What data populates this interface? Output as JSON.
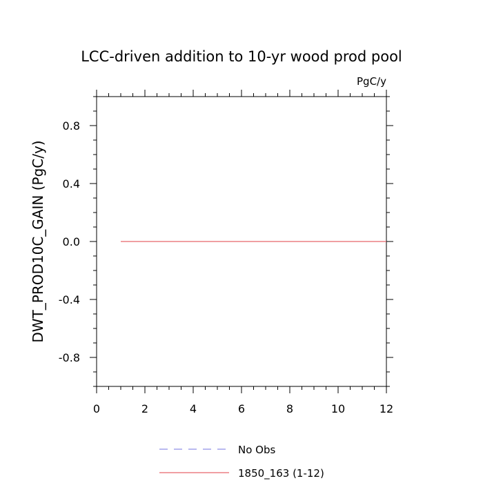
{
  "chart_data": {
    "type": "line",
    "title": "LCC-driven addition to 10-yr wood prod pool",
    "units_label": "PgC/y",
    "ylabel": "DWT_PROD10C_GAIN  (PgC/y)",
    "xlabel": "",
    "xlim": [
      0,
      12
    ],
    "ylim": [
      -1,
      1
    ],
    "x_ticks": [
      0,
      2,
      4,
      6,
      8,
      10,
      12
    ],
    "y_ticks": [
      -0.8,
      -0.4,
      0.0,
      0.4,
      0.8
    ],
    "x_tick_labels": [
      "0",
      "2",
      "4",
      "6",
      "8",
      "10",
      "12"
    ],
    "y_tick_labels": [
      "-0.8",
      "-0.4",
      "0.0",
      "0.4",
      "0.8"
    ],
    "x": [
      1,
      2,
      3,
      4,
      5,
      6,
      7,
      8,
      9,
      10,
      11,
      12
    ],
    "series": [
      {
        "name": "1850_163 (1-12)",
        "color": "#e8666b",
        "dash": "solid",
        "values": [
          0,
          0,
          0,
          0,
          0,
          0,
          0,
          0,
          0,
          0,
          0,
          0
        ]
      }
    ],
    "legend": [
      {
        "label": "No Obs",
        "color": "#8f8fe6",
        "dash": "dashed"
      },
      {
        "label": "1850_163 (1-12)",
        "color": "#e8666b",
        "dash": "solid"
      }
    ],
    "legend_position": "bottom",
    "grid": false
  }
}
